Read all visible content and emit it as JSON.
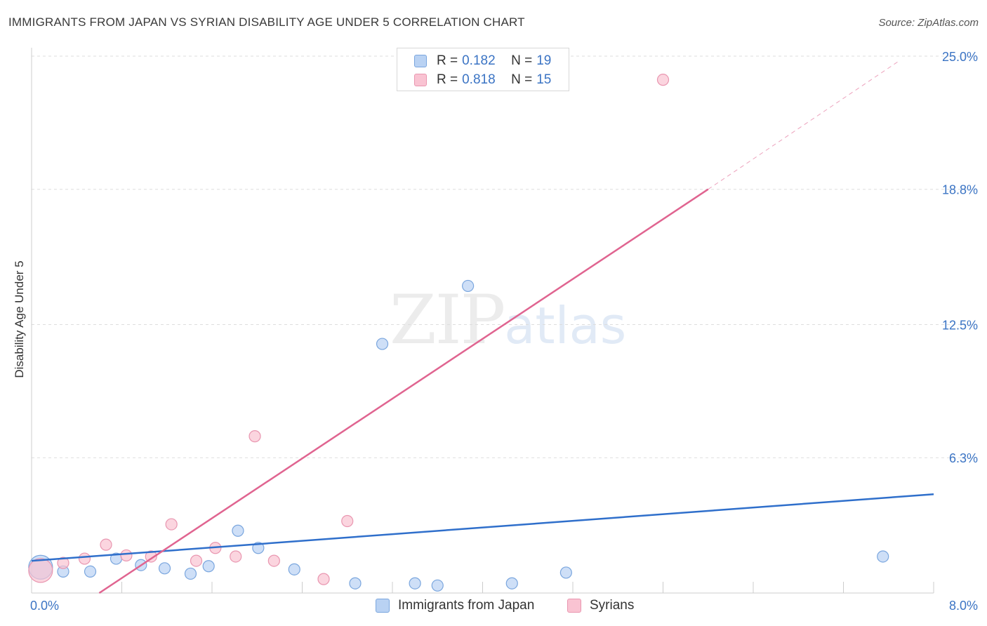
{
  "title": "IMMIGRANTS FROM JAPAN VS SYRIAN DISABILITY AGE UNDER 5 CORRELATION CHART",
  "source": "Source: ZipAtlas.com",
  "watermark": {
    "zip": "ZIP",
    "atlas": "atlas"
  },
  "legend": {
    "r_label": "R =",
    "n_label": "N =",
    "series": [
      {
        "name": "Immigrants from Japan",
        "r": "0.182",
        "n": "19"
      },
      {
        "name": "Syrians",
        "r": "0.818",
        "n": "15"
      }
    ]
  },
  "colors": {
    "blue_fill": "#b9d2f3",
    "blue_stroke": "#7aa6de",
    "blue_line": "#2f6fcb",
    "pink_fill": "#f9c3d2",
    "pink_stroke": "#e996b0",
    "pink_line": "#e06490",
    "grid": "#dddddd",
    "tick_text": "#3b74c4"
  },
  "chart_data": {
    "type": "scatter",
    "title": "IMMIGRANTS FROM JAPAN VS SYRIAN DISABILITY AGE UNDER 5 CORRELATION CHART",
    "xlabel": "",
    "ylabel": "Disability Age Under 5",
    "xlim": [
      0,
      8.0
    ],
    "ylim": [
      0,
      25.0
    ],
    "x_tick_labels": [
      "0.0%",
      "8.0%"
    ],
    "y_ticks": [
      6.3,
      12.5,
      18.8,
      25.0
    ],
    "y_tick_labels": [
      "6.3%",
      "12.5%",
      "18.8%",
      "25.0%"
    ],
    "series": [
      {
        "name": "Immigrants from Japan",
        "color": "#b9d2f3",
        "points": [
          {
            "x": 0.08,
            "y": 1.2,
            "size": "large"
          },
          {
            "x": 0.28,
            "y": 1.0
          },
          {
            "x": 0.52,
            "y": 1.0
          },
          {
            "x": 0.75,
            "y": 1.6
          },
          {
            "x": 0.97,
            "y": 1.3
          },
          {
            "x": 1.18,
            "y": 1.15
          },
          {
            "x": 1.41,
            "y": 0.9
          },
          {
            "x": 1.57,
            "y": 1.25
          },
          {
            "x": 1.83,
            "y": 2.9
          },
          {
            "x": 2.01,
            "y": 2.1
          },
          {
            "x": 2.33,
            "y": 1.1
          },
          {
            "x": 2.87,
            "y": 0.45
          },
          {
            "x": 3.11,
            "y": 11.6
          },
          {
            "x": 3.4,
            "y": 0.45
          },
          {
            "x": 3.6,
            "y": 0.35
          },
          {
            "x": 3.87,
            "y": 14.3
          },
          {
            "x": 4.26,
            "y": 0.45
          },
          {
            "x": 4.74,
            "y": 0.95
          },
          {
            "x": 7.55,
            "y": 1.7
          }
        ],
        "trend": {
          "x0": 0.0,
          "y0": 1.5,
          "x1": 8.0,
          "y1": 4.6
        }
      },
      {
        "name": "Syrians",
        "color": "#f9c3d2",
        "points": [
          {
            "x": 0.08,
            "y": 1.05,
            "size": "large"
          },
          {
            "x": 0.28,
            "y": 1.4
          },
          {
            "x": 0.47,
            "y": 1.6
          },
          {
            "x": 0.66,
            "y": 2.25
          },
          {
            "x": 0.84,
            "y": 1.75
          },
          {
            "x": 1.06,
            "y": 1.7
          },
          {
            "x": 1.24,
            "y": 3.2
          },
          {
            "x": 1.46,
            "y": 1.5
          },
          {
            "x": 1.63,
            "y": 2.1
          },
          {
            "x": 1.81,
            "y": 1.7
          },
          {
            "x": 1.98,
            "y": 7.3
          },
          {
            "x": 2.15,
            "y": 1.5
          },
          {
            "x": 2.59,
            "y": 0.65
          },
          {
            "x": 2.8,
            "y": 3.35
          },
          {
            "x": 5.6,
            "y": 23.9
          }
        ],
        "trend": {
          "x0": 0.6,
          "y0": 0.0,
          "x1": 6.0,
          "y1": 18.8
        },
        "trend_extension": {
          "x0": 6.0,
          "y0": 18.8,
          "x1": 7.7,
          "y1": 24.8
        }
      }
    ]
  }
}
